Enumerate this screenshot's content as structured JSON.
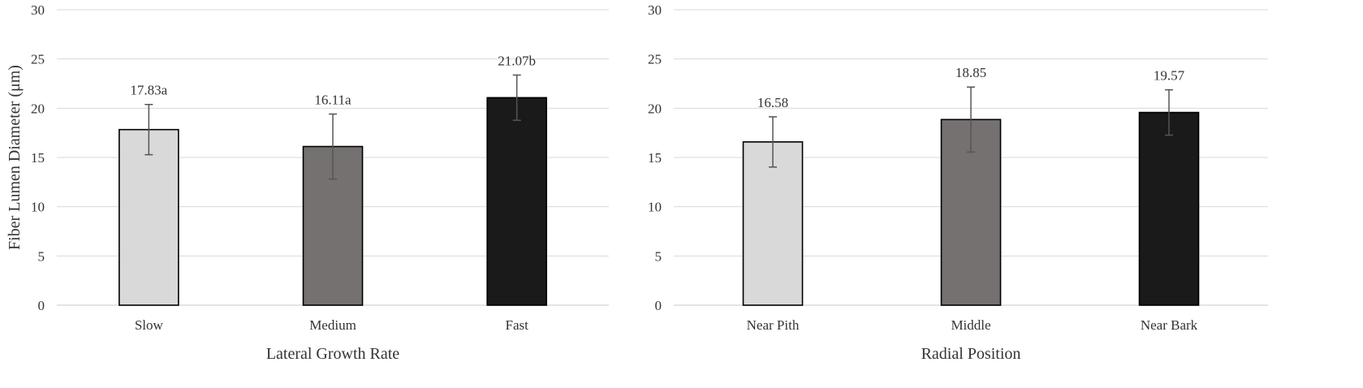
{
  "chart_data": [
    {
      "type": "bar",
      "title": "",
      "xlabel": "Lateral Growth Rate",
      "ylabel": "Fiber Lumen Diameter (μm)",
      "ylim": [
        0,
        30
      ],
      "yticks": [
        0,
        5,
        10,
        15,
        20,
        25,
        30
      ],
      "grid": true,
      "categories": [
        "Slow",
        "Medium",
        "Fast"
      ],
      "values": [
        17.83,
        16.11,
        21.07
      ],
      "errors": [
        2.55,
        3.3,
        2.3
      ],
      "data_labels": [
        "17.83a",
        "16.11a",
        "21.07b"
      ],
      "colors": [
        "#d9d9d9",
        "#767171",
        "#1a1a1a"
      ]
    },
    {
      "type": "bar",
      "title": "",
      "xlabel": "Radial Position",
      "ylabel": "",
      "ylim": [
        0,
        30
      ],
      "yticks": [
        0,
        5,
        10,
        15,
        20,
        25,
        30
      ],
      "grid": true,
      "categories": [
        "Near Pith",
        "Middle",
        "Near Bark"
      ],
      "values": [
        16.58,
        18.85,
        19.57
      ],
      "errors": [
        2.55,
        3.3,
        2.3
      ],
      "data_labels": [
        "16.58",
        "18.85",
        "19.57"
      ],
      "colors": [
        "#d9d9d9",
        "#767171",
        "#1a1a1a"
      ]
    }
  ]
}
